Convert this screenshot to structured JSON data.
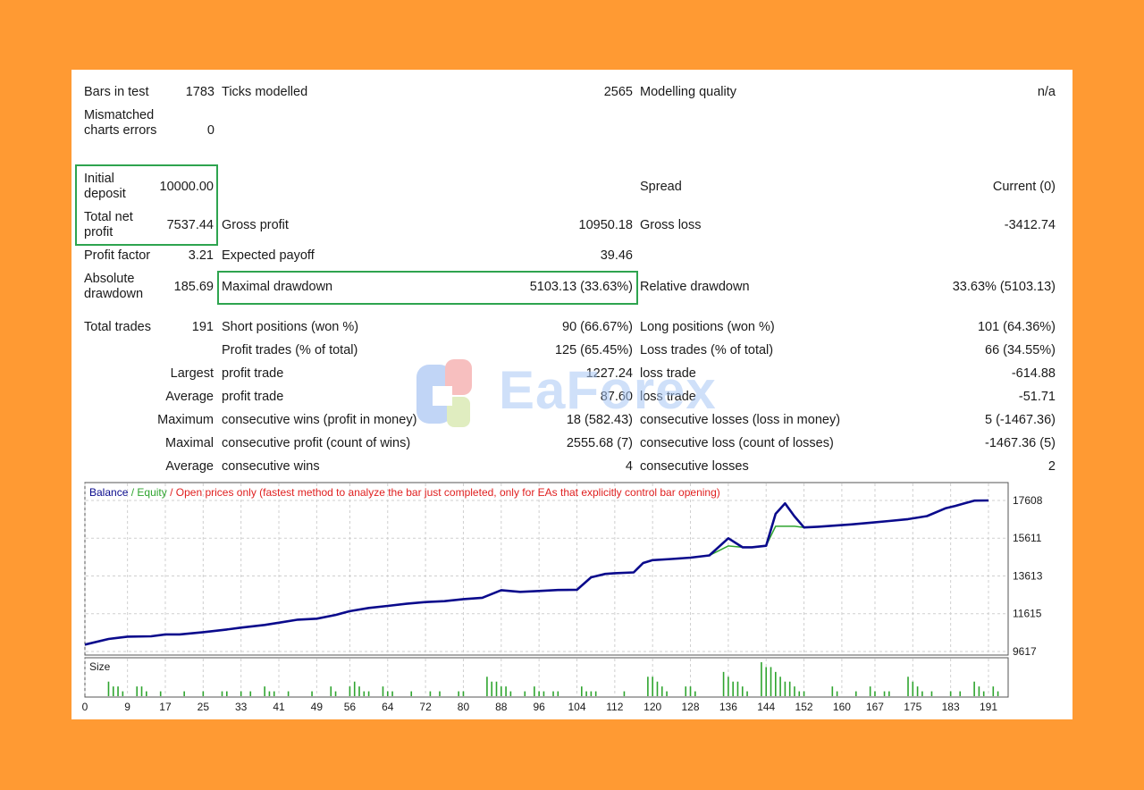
{
  "report": {
    "bars_in_test": {
      "label": "Bars in test",
      "value": "1783"
    },
    "ticks_modelled": {
      "label": "Ticks modelled",
      "value": "2565"
    },
    "modelling_quality": {
      "label": "Modelling quality",
      "value": "n/a"
    },
    "mismatched": {
      "label": "Mismatched charts errors",
      "value": "0"
    },
    "initial_deposit": {
      "label": "Initial deposit",
      "value": "10000.00"
    },
    "spread": {
      "label": "Spread",
      "value": "Current (0)"
    },
    "total_net_profit": {
      "label": "Total net profit",
      "value": "7537.44"
    },
    "gross_profit": {
      "label": "Gross profit",
      "value": "10950.18"
    },
    "gross_loss": {
      "label": "Gross loss",
      "value": "-3412.74"
    },
    "profit_factor": {
      "label": "Profit factor",
      "value": "3.21"
    },
    "expected_payoff": {
      "label": "Expected payoff",
      "value": "39.46"
    },
    "absolute_drawdown": {
      "label": "Absolute drawdown",
      "value": "185.69"
    },
    "maximal_drawdown": {
      "label": "Maximal drawdown",
      "value": "5103.13 (33.63%)"
    },
    "relative_drawdown": {
      "label": "Relative drawdown",
      "value": "33.63% (5103.13)"
    },
    "total_trades": {
      "label": "Total trades",
      "value": "191"
    },
    "short_positions": {
      "label": "Short positions (won %)",
      "value": "90 (66.67%)"
    },
    "long_positions": {
      "label": "Long positions (won %)",
      "value": "101 (64.36%)"
    },
    "profit_trades": {
      "label": "Profit trades (% of total)",
      "value": "125 (65.45%)"
    },
    "loss_trades": {
      "label": "Loss trades (% of total)",
      "value": "66 (34.55%)"
    },
    "largest": {
      "prefix": "Largest",
      "p_label": "profit trade",
      "p_value": "1227.24",
      "l_label": "loss trade",
      "l_value": "-614.88"
    },
    "average": {
      "prefix": "Average",
      "p_label": "profit trade",
      "p_value": "87.60",
      "l_label": "loss trade",
      "l_value": "-51.71"
    },
    "maximum": {
      "prefix": "Maximum",
      "p_label": "consecutive wins (profit in money)",
      "p_value": "18 (582.43)",
      "l_label": "consecutive losses (loss in money)",
      "l_value": "5 (-1467.36)"
    },
    "maximal": {
      "prefix": "Maximal",
      "p_label": "consecutive profit (count of wins)",
      "p_value": "2555.68 (7)",
      "l_label": "consecutive loss (count of losses)",
      "l_value": "-1467.36 (5)"
    },
    "average2": {
      "prefix": "Average",
      "p_label": "consecutive wins",
      "p_value": "4",
      "l_label": "consecutive losses",
      "l_value": "2"
    }
  },
  "watermark": {
    "text": "EaForex"
  },
  "chart_data": [
    {
      "type": "line",
      "legend": {
        "balance": "Balance",
        "sep1": " / ",
        "equity": "Equity",
        "sep2": " / ",
        "mode": "Open prices only (fastest method to analyze the bar just completed, only for EAs that explicitly control bar opening)"
      },
      "colors": {
        "balance": "#0a0a8c",
        "equity": "#2ea42e",
        "mode": "#e02020"
      },
      "y_ticks": [
        17608,
        15611,
        13613,
        11615,
        9617
      ],
      "ylim": [
        9617,
        17608
      ],
      "x": [
        0,
        5,
        9,
        14,
        17,
        20,
        25,
        30,
        33,
        38,
        41,
        45,
        49,
        53,
        56,
        60,
        64,
        68,
        72,
        76,
        80,
        84,
        88,
        92,
        96,
        100,
        104,
        107,
        110,
        112,
        116,
        118,
        120,
        124,
        128,
        132,
        136,
        139,
        141,
        144,
        146,
        148,
        150,
        152,
        155,
        158,
        162,
        166,
        170,
        174,
        178,
        182,
        184,
        186,
        188,
        191
      ],
      "series": [
        {
          "name": "Balance",
          "values": [
            9980,
            10280,
            10400,
            10420,
            10520,
            10520,
            10640,
            10780,
            10880,
            11020,
            11140,
            11300,
            11350,
            11550,
            11750,
            11920,
            12030,
            12140,
            12230,
            12280,
            12390,
            12460,
            12860,
            12770,
            12820,
            12870,
            12880,
            13540,
            13720,
            13760,
            13800,
            14300,
            14450,
            14510,
            14580,
            14700,
            15610,
            15130,
            15130,
            15210,
            16900,
            17450,
            16760,
            16180,
            16220,
            16270,
            16340,
            16430,
            16520,
            16620,
            16780,
            17200,
            17320,
            17460,
            17600,
            17608
          ]
        },
        {
          "name": "Equity",
          "values": [
            9980,
            10280,
            10400,
            10420,
            10520,
            10520,
            10640,
            10780,
            10880,
            11020,
            11140,
            11300,
            11350,
            11550,
            11750,
            11920,
            12030,
            12140,
            12230,
            12280,
            12390,
            12460,
            12860,
            12770,
            12820,
            12870,
            12880,
            13540,
            13720,
            13760,
            13800,
            14300,
            14450,
            14510,
            14580,
            14700,
            15200,
            15130,
            15130,
            15210,
            16240,
            16240,
            16240,
            16180,
            16220,
            16270,
            16340,
            16430,
            16520,
            16620,
            16780,
            17200,
            17320,
            17460,
            17600,
            17608
          ]
        }
      ]
    },
    {
      "type": "bar",
      "title": "Size",
      "x_ticks": [
        0,
        9,
        17,
        25,
        33,
        41,
        49,
        56,
        64,
        72,
        80,
        88,
        96,
        104,
        112,
        120,
        128,
        136,
        144,
        152,
        160,
        167,
        175,
        183,
        191
      ],
      "values": [
        0,
        0,
        0,
        0,
        0,
        3,
        2,
        2,
        1,
        0,
        0,
        2,
        2,
        1,
        0,
        0,
        1,
        0,
        0,
        0,
        0,
        1,
        0,
        0,
        0,
        1,
        0,
        0,
        0,
        1,
        1,
        0,
        0,
        1,
        0,
        1,
        0,
        0,
        2,
        1,
        1,
        0,
        0,
        1,
        0,
        0,
        0,
        0,
        1,
        0,
        0,
        0,
        2,
        1,
        0,
        0,
        2,
        3,
        2,
        1,
        1,
        0,
        0,
        2,
        1,
        1,
        0,
        0,
        0,
        1,
        0,
        0,
        0,
        1,
        0,
        1,
        0,
        0,
        0,
        1,
        1,
        0,
        0,
        0,
        0,
        4,
        3,
        3,
        2,
        2,
        1,
        0,
        0,
        1,
        0,
        2,
        1,
        1,
        0,
        1,
        1,
        0,
        0,
        0,
        0,
        2,
        1,
        1,
        1,
        0,
        0,
        0,
        0,
        0,
        1,
        0,
        0,
        0,
        0,
        4,
        4,
        3,
        2,
        1,
        0,
        0,
        0,
        2,
        2,
        1,
        0,
        0,
        0,
        0,
        0,
        5,
        4,
        3,
        3,
        2,
        1,
        0,
        0,
        7,
        6,
        6,
        5,
        4,
        3,
        3,
        2,
        1,
        1,
        0,
        0,
        0,
        0,
        0,
        2,
        1,
        0,
        0,
        0,
        1,
        0,
        0,
        2,
        1,
        0,
        1,
        1,
        0,
        0,
        0,
        4,
        3,
        2,
        1,
        0,
        1,
        0,
        0,
        0,
        1,
        0,
        1,
        0,
        0,
        3,
        2,
        1,
        0,
        2,
        1
      ]
    }
  ]
}
